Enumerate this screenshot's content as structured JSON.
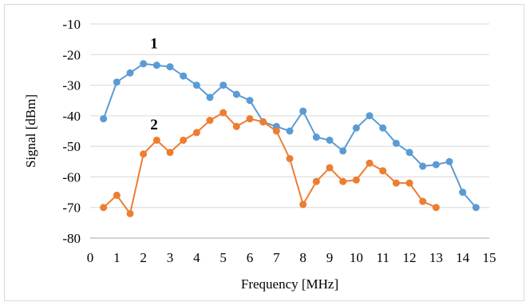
{
  "chart_data": {
    "type": "line",
    "title": "",
    "xlabel": "Frequency [MHz]",
    "ylabel": "Signal [dBm]",
    "xlim": [
      0,
      15
    ],
    "ylim": [
      -80,
      -10
    ],
    "xticks": [
      0,
      1,
      2,
      3,
      4,
      5,
      6,
      7,
      8,
      9,
      10,
      11,
      12,
      13,
      14,
      15
    ],
    "yticks": [
      -80,
      -70,
      -60,
      -50,
      -40,
      -30,
      -20,
      -10
    ],
    "grid": "horizontal",
    "legend": "none",
    "series": [
      {
        "name": "1",
        "color": "#5b9bd5",
        "x": [
          0.5,
          1,
          1.5,
          2,
          2.5,
          3,
          3.5,
          4,
          4.5,
          5,
          5.5,
          6,
          6.5,
          7,
          7.5,
          8,
          8.5,
          9,
          9.5,
          10,
          10.5,
          11,
          11.5,
          12,
          12.5,
          13,
          13.5,
          14,
          14.5
        ],
        "values": [
          -41,
          -29,
          -26,
          -23,
          -23.5,
          -24,
          -27,
          -30,
          -34,
          -30,
          -33,
          -35,
          -42,
          -43.5,
          -45,
          -38.5,
          -47,
          -48,
          -51.5,
          -44,
          -40,
          -44,
          -49,
          -52,
          -56.5,
          -56,
          -55,
          -65,
          -70
        ]
      },
      {
        "name": "2",
        "color": "#ed7d31",
        "x": [
          0.5,
          1,
          1.5,
          2,
          2.5,
          3,
          3.5,
          4,
          4.5,
          5,
          5.5,
          6,
          6.5,
          7,
          7.5,
          8,
          8.5,
          9,
          9.5,
          10,
          10.5,
          11,
          11.5,
          12,
          12.5,
          13
        ],
        "values": [
          -70,
          -66,
          -72,
          -52.5,
          -48,
          -52,
          -48,
          -45.5,
          -41.5,
          -39,
          -43.5,
          -41,
          -42,
          -45,
          -54,
          -69,
          -61.5,
          -57,
          -61.5,
          -61,
          -55.5,
          -58,
          -62,
          -62,
          -68,
          -70
        ]
      }
    ],
    "annotations": [
      {
        "text": "1",
        "x": 2.4,
        "y": -18
      },
      {
        "text": "2",
        "x": 2.4,
        "y": -44.5
      }
    ]
  }
}
